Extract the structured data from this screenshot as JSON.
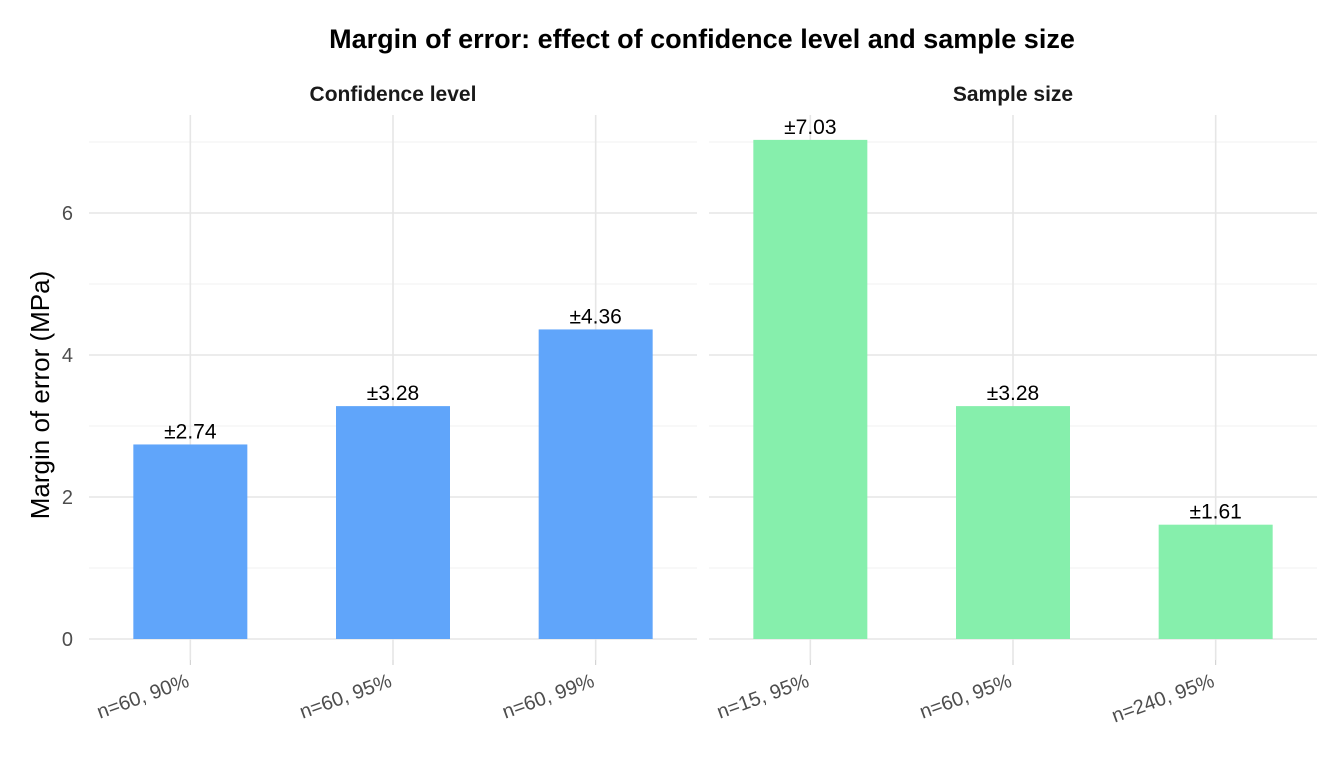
{
  "chart_data": {
    "type": "bar",
    "title": "Margin of error: effect of confidence level and sample size",
    "ylabel": "Margin of error (MPa)",
    "xlabel": "",
    "ylim": [
      0,
      7.35
    ],
    "yticks": [
      0,
      2,
      4,
      6
    ],
    "grid": true,
    "legend": "none",
    "panels": [
      {
        "name": "Confidence level",
        "color": "#60A5FA",
        "categories": [
          "n=60, 90%",
          "n=60, 95%",
          "n=60, 99%"
        ],
        "values": [
          2.74,
          3.28,
          4.36
        ],
        "labels": [
          "±2.74",
          "±3.28",
          "±4.36"
        ]
      },
      {
        "name": "Sample size",
        "color": "#86EFAC",
        "categories": [
          "n=15, 95%",
          "n=60, 95%",
          "n=240, 95%"
        ],
        "values": [
          7.03,
          3.28,
          1.61
        ],
        "labels": [
          "±7.03",
          "±3.28",
          "±1.61"
        ]
      }
    ]
  }
}
